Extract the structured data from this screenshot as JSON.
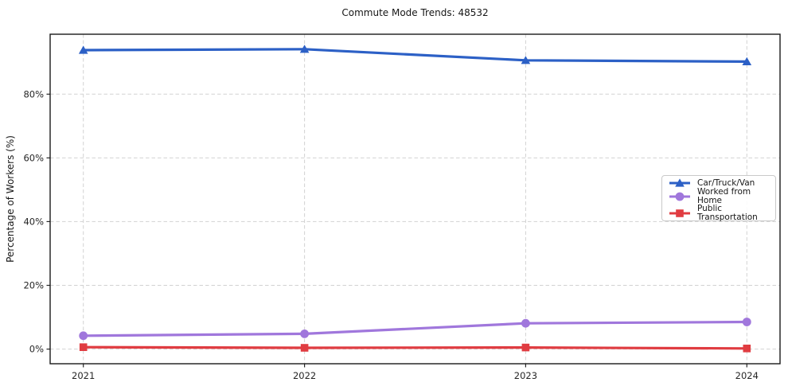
{
  "chart_data": {
    "type": "line",
    "title": "Commute Mode Trends: 48532",
    "xlabel": "",
    "ylabel": "Percentage of Workers (%)",
    "categories": [
      "2021",
      "2022",
      "2023",
      "2024"
    ],
    "x": [
      0,
      1,
      2,
      3
    ],
    "xlim": [
      -0.15,
      3.15
    ],
    "ylim": [
      -4.6,
      98.8
    ],
    "yticks": [
      0,
      20,
      40,
      60,
      80
    ],
    "ytick_labels": [
      "0%",
      "20%",
      "40%",
      "60%",
      "80%"
    ],
    "grid": true,
    "legend_position": "center right",
    "series": [
      {
        "name": "Car/Truck/Van",
        "color": "#2c60c6",
        "marker": "triangle",
        "values": [
          93.8,
          94.1,
          90.6,
          90.2
        ]
      },
      {
        "name": "Worked from Home",
        "color": "#a077dc",
        "marker": "circle",
        "values": [
          4.2,
          4.8,
          8.1,
          8.5
        ]
      },
      {
        "name": "Public Transportation",
        "color": "#e03c41",
        "marker": "square",
        "values": [
          0.6,
          0.4,
          0.5,
          0.2
        ]
      }
    ]
  }
}
